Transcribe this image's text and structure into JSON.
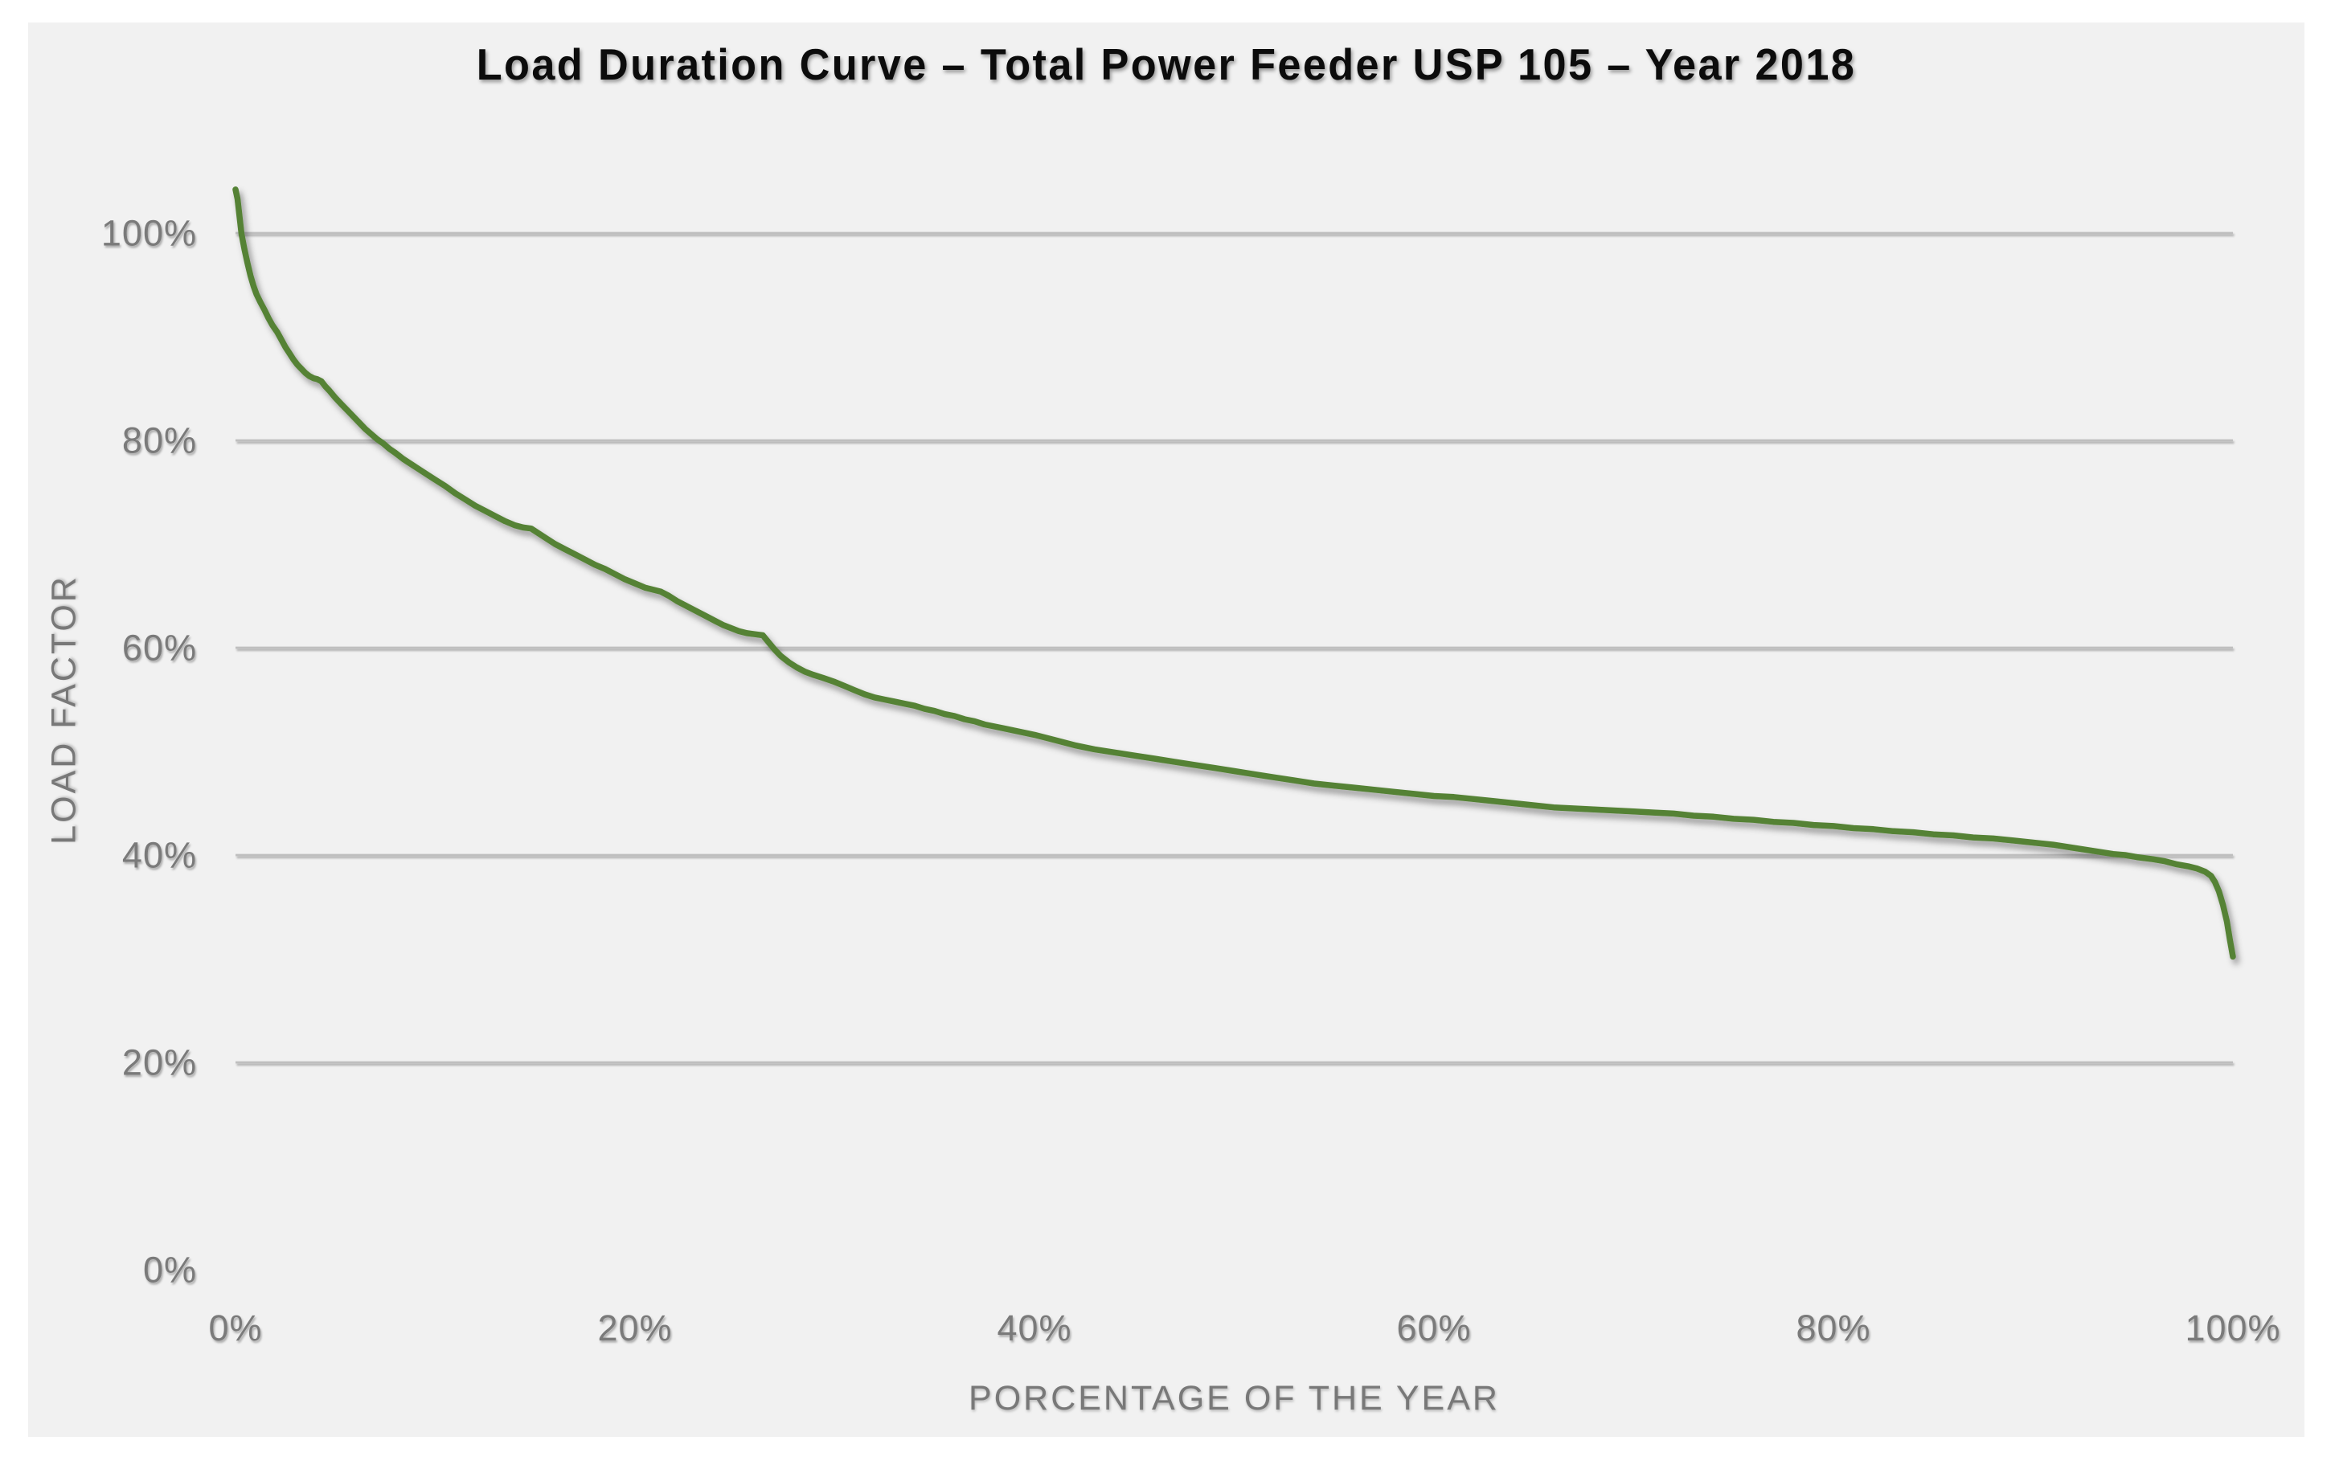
{
  "title": "Load Duration Curve – Total Power Feeder USP 105 – Year 2018",
  "colors": {
    "page_background": "#ffffff",
    "chart_background": "#f1f1f1",
    "line_green": "#548235",
    "gridline": "#bfbfbf",
    "axis_line": "#808080",
    "label_gray": "#7a7a7a",
    "title_black": "#0c0c0c"
  },
  "chart_data": {
    "type": "line",
    "title": "Load Duration Curve – Total Power Feeder USP 105 – Year 2018",
    "xlabel": "PORCENTAGE OF THE YEAR",
    "ylabel": "LOAD FACTOR",
    "xlim": [
      0,
      100
    ],
    "ylim": [
      0,
      105
    ],
    "grid": "horizontal",
    "legend": "none",
    "x_ticks": [
      {
        "value": 0,
        "label": "0%"
      },
      {
        "value": 20,
        "label": "20%"
      },
      {
        "value": 40,
        "label": "40%"
      },
      {
        "value": 60,
        "label": "60%"
      },
      {
        "value": 80,
        "label": "80%"
      },
      {
        "value": 100,
        "label": "100%"
      }
    ],
    "y_ticks": [
      {
        "value": 0,
        "label": "0%"
      },
      {
        "value": 20,
        "label": "20%"
      },
      {
        "value": 40,
        "label": "40%"
      },
      {
        "value": 60,
        "label": "60%"
      },
      {
        "value": 80,
        "label": "80%"
      },
      {
        "value": 100,
        "label": "100%"
      }
    ],
    "series": [
      {
        "color": "#548235",
        "points": [
          [
            0,
            104.2
          ],
          [
            0.1,
            103.3
          ],
          [
            0.2,
            101.6
          ],
          [
            0.3,
            99.9
          ],
          [
            0.45,
            98.4
          ],
          [
            0.6,
            97.1
          ],
          [
            0.75,
            95.9
          ],
          [
            0.9,
            94.9
          ],
          [
            1.05,
            94.1
          ],
          [
            1.25,
            93.3
          ],
          [
            1.45,
            92.6
          ],
          [
            1.65,
            91.8
          ],
          [
            1.85,
            91.1
          ],
          [
            2.1,
            90.4
          ],
          [
            2.3,
            89.7
          ],
          [
            2.5,
            89.0
          ],
          [
            2.7,
            88.4
          ],
          [
            2.9,
            87.8
          ],
          [
            3.1,
            87.3
          ],
          [
            3.3,
            86.9
          ],
          [
            3.5,
            86.5
          ],
          [
            3.7,
            86.2
          ],
          [
            3.9,
            86.0
          ],
          [
            4.1,
            85.9
          ],
          [
            4.3,
            85.7
          ],
          [
            4.5,
            85.2
          ],
          [
            4.7,
            84.8
          ],
          [
            5.0,
            84.1
          ],
          [
            5.3,
            83.5
          ],
          [
            5.6,
            82.9
          ],
          [
            5.9,
            82.3
          ],
          [
            6.2,
            81.7
          ],
          [
            6.5,
            81.1
          ],
          [
            6.8,
            80.6
          ],
          [
            7.1,
            80.1
          ],
          [
            7.4,
            79.7
          ],
          [
            7.7,
            79.2
          ],
          [
            8.0,
            78.8
          ],
          [
            8.4,
            78.2
          ],
          [
            8.8,
            77.7
          ],
          [
            9.2,
            77.2
          ],
          [
            9.6,
            76.7
          ],
          [
            10.0,
            76.2
          ],
          [
            10.5,
            75.6
          ],
          [
            11.0,
            74.9
          ],
          [
            11.5,
            74.3
          ],
          [
            12.0,
            73.7
          ],
          [
            12.5,
            73.2
          ],
          [
            13.0,
            72.7
          ],
          [
            13.5,
            72.2
          ],
          [
            14.0,
            71.8
          ],
          [
            14.4,
            71.6
          ],
          [
            14.8,
            71.5
          ],
          [
            15.2,
            71.0
          ],
          [
            15.6,
            70.5
          ],
          [
            16.0,
            70.0
          ],
          [
            16.5,
            69.5
          ],
          [
            17.0,
            69.0
          ],
          [
            17.5,
            68.5
          ],
          [
            18.0,
            68.0
          ],
          [
            18.5,
            67.6
          ],
          [
            19.0,
            67.1
          ],
          [
            19.5,
            66.6
          ],
          [
            20.0,
            66.2
          ],
          [
            20.5,
            65.8
          ],
          [
            20.9,
            65.6
          ],
          [
            21.3,
            65.4
          ],
          [
            21.7,
            65.0
          ],
          [
            22.1,
            64.5
          ],
          [
            22.5,
            64.1
          ],
          [
            23.0,
            63.6
          ],
          [
            23.5,
            63.1
          ],
          [
            24.0,
            62.6
          ],
          [
            24.4,
            62.2
          ],
          [
            24.8,
            61.9
          ],
          [
            25.2,
            61.6
          ],
          [
            25.6,
            61.4
          ],
          [
            26.0,
            61.3
          ],
          [
            26.4,
            61.2
          ],
          [
            26.7,
            60.5
          ],
          [
            27.0,
            59.8
          ],
          [
            27.3,
            59.2
          ],
          [
            27.7,
            58.6
          ],
          [
            28.1,
            58.1
          ],
          [
            28.5,
            57.7
          ],
          [
            28.9,
            57.4
          ],
          [
            29.4,
            57.1
          ],
          [
            30.0,
            56.7
          ],
          [
            30.5,
            56.3
          ],
          [
            31.0,
            55.9
          ],
          [
            31.5,
            55.5
          ],
          [
            32.0,
            55.2
          ],
          [
            32.5,
            55.0
          ],
          [
            33.0,
            54.8
          ],
          [
            33.5,
            54.6
          ],
          [
            34.0,
            54.4
          ],
          [
            34.5,
            54.1
          ],
          [
            35.0,
            53.9
          ],
          [
            35.5,
            53.6
          ],
          [
            36.0,
            53.4
          ],
          [
            36.5,
            53.1
          ],
          [
            37.0,
            52.9
          ],
          [
            37.5,
            52.6
          ],
          [
            38.0,
            52.4
          ],
          [
            38.5,
            52.2
          ],
          [
            39.0,
            52.0
          ],
          [
            39.5,
            51.8
          ],
          [
            40.0,
            51.6
          ],
          [
            41.0,
            51.1
          ],
          [
            42.0,
            50.6
          ],
          [
            43.0,
            50.2
          ],
          [
            44.0,
            49.9
          ],
          [
            45.0,
            49.6
          ],
          [
            46.0,
            49.3
          ],
          [
            47.0,
            49.0
          ],
          [
            48.0,
            48.7
          ],
          [
            49.0,
            48.4
          ],
          [
            50.0,
            48.1
          ],
          [
            51.0,
            47.8
          ],
          [
            52.0,
            47.5
          ],
          [
            53.0,
            47.2
          ],
          [
            54.0,
            46.9
          ],
          [
            55.0,
            46.7
          ],
          [
            56.0,
            46.5
          ],
          [
            57.0,
            46.3
          ],
          [
            58.0,
            46.1
          ],
          [
            59.0,
            45.9
          ],
          [
            60.0,
            45.7
          ],
          [
            61.0,
            45.6
          ],
          [
            62.0,
            45.4
          ],
          [
            63.0,
            45.2
          ],
          [
            64.0,
            45.0
          ],
          [
            65.0,
            44.8
          ],
          [
            66.0,
            44.6
          ],
          [
            67.0,
            44.5
          ],
          [
            68.0,
            44.4
          ],
          [
            69.0,
            44.3
          ],
          [
            70.0,
            44.2
          ],
          [
            71.0,
            44.1
          ],
          [
            72.0,
            44.0
          ],
          [
            73.0,
            43.8
          ],
          [
            74.0,
            43.7
          ],
          [
            75.0,
            43.5
          ],
          [
            76.0,
            43.4
          ],
          [
            77.0,
            43.2
          ],
          [
            78.0,
            43.1
          ],
          [
            79.0,
            42.9
          ],
          [
            80.0,
            42.8
          ],
          [
            81.0,
            42.6
          ],
          [
            82.0,
            42.5
          ],
          [
            83.0,
            42.3
          ],
          [
            84.0,
            42.2
          ],
          [
            85.0,
            42.0
          ],
          [
            86.0,
            41.9
          ],
          [
            87.0,
            41.7
          ],
          [
            88.0,
            41.6
          ],
          [
            89.0,
            41.4
          ],
          [
            90.0,
            41.2
          ],
          [
            91.0,
            41.0
          ],
          [
            92.0,
            40.7
          ],
          [
            93.0,
            40.4
          ],
          [
            94.0,
            40.1
          ],
          [
            94.6,
            40.0
          ],
          [
            95.2,
            39.8
          ],
          [
            96.0,
            39.6
          ],
          [
            96.6,
            39.4
          ],
          [
            97.2,
            39.1
          ],
          [
            97.8,
            38.9
          ],
          [
            98.2,
            38.7
          ],
          [
            98.6,
            38.4
          ],
          [
            98.9,
            38.0
          ],
          [
            99.1,
            37.4
          ],
          [
            99.3,
            36.5
          ],
          [
            99.5,
            35.2
          ],
          [
            99.7,
            33.6
          ],
          [
            99.85,
            31.8
          ],
          [
            100,
            30.2
          ]
        ]
      }
    ]
  }
}
